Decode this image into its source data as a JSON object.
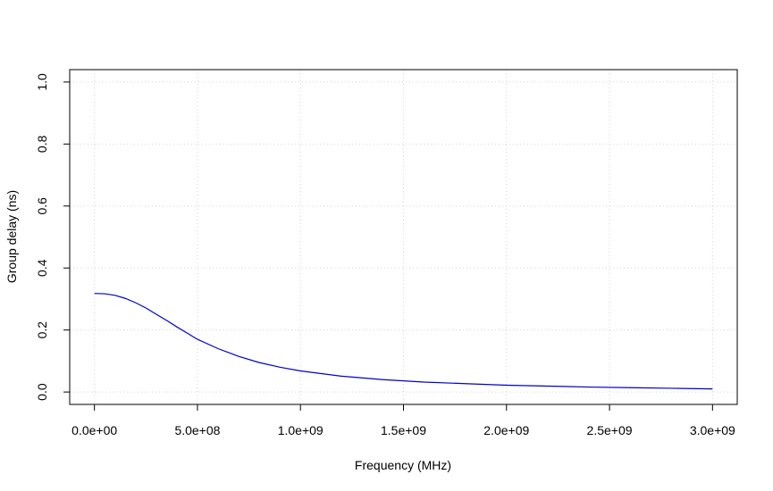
{
  "chart_data": {
    "type": "line",
    "title": "",
    "xlabel": "Frequency (MHz)",
    "ylabel": "Group delay (ns)",
    "xlim": [
      -120000000,
      3120000000
    ],
    "ylim": [
      -0.04,
      1.04
    ],
    "x_ticks": [
      0,
      500000000,
      1000000000,
      1500000000,
      2000000000,
      2500000000,
      3000000000
    ],
    "x_tick_labels": [
      "0.0e+00",
      "5.0e+08",
      "1.0e+09",
      "1.5e+09",
      "2.0e+09",
      "2.5e+09",
      "3.0e+09"
    ],
    "y_ticks": [
      0,
      0.2,
      0.4,
      0.6,
      0.8,
      1.0
    ],
    "y_tick_labels": [
      "0.0",
      "0.2",
      "0.4",
      "0.6",
      "0.8",
      "1.0"
    ],
    "grid": true,
    "series": [
      {
        "color": "#0000cc",
        "x": [
          0,
          50000000,
          100000000,
          150000000,
          200000000,
          250000000,
          300000000,
          350000000,
          400000000,
          450000000,
          500000000,
          600000000,
          700000000,
          800000000,
          900000000,
          1000000000,
          1200000000,
          1400000000,
          1600000000,
          1800000000,
          2000000000,
          2200000000,
          2400000000,
          2600000000,
          2800000000,
          3000000000
        ],
        "y": [
          0.318,
          0.317,
          0.312,
          0.302,
          0.288,
          0.271,
          0.251,
          0.231,
          0.21,
          0.19,
          0.17,
          0.14,
          0.115,
          0.095,
          0.08,
          0.068,
          0.051,
          0.04,
          0.032,
          0.027,
          0.022,
          0.019,
          0.016,
          0.014,
          0.012,
          0.01
        ]
      }
    ]
  }
}
